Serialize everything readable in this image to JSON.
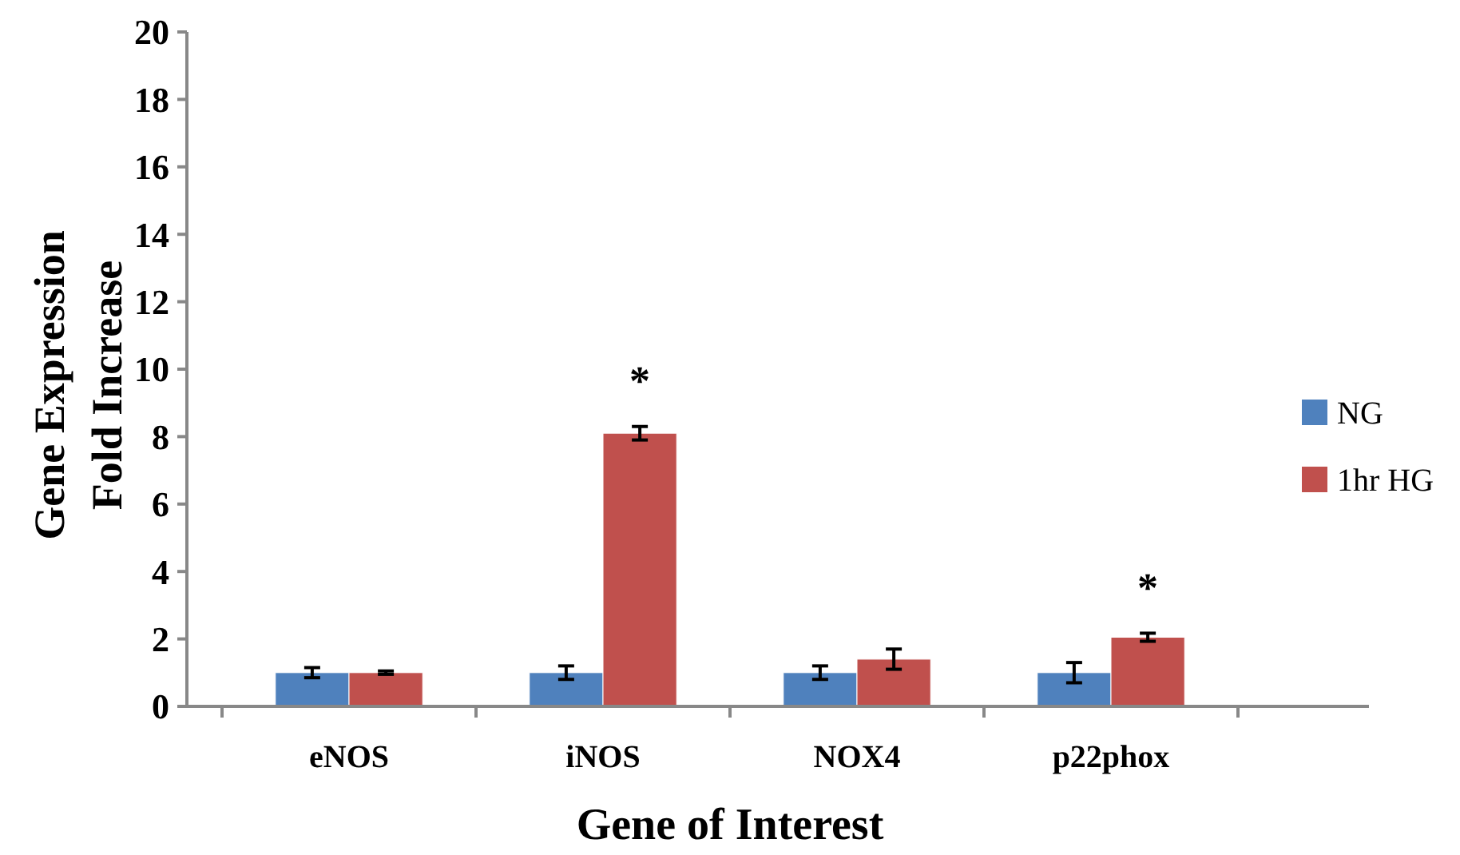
{
  "chart_data": {
    "type": "bar",
    "xlabel": "Gene of Interest",
    "ylabel": "Gene Expression Fold Increase",
    "categories": [
      "eNOS",
      "iNOS",
      "NOX4",
      "p22phox"
    ],
    "series": [
      {
        "name": "NG",
        "color": "#4f81bd",
        "values": [
          1,
          1,
          1,
          1
        ],
        "errors": [
          0.15,
          0.2,
          0.2,
          0.3
        ]
      },
      {
        "name": "1hr HG",
        "color": "#c0504d",
        "values": [
          1,
          8.1,
          1.4,
          2.05
        ],
        "errors": [
          0.05,
          0.2,
          0.3,
          0.12
        ]
      }
    ],
    "ylim": [
      0,
      20
    ],
    "yticks": [
      0,
      2,
      4,
      6,
      8,
      10,
      12,
      14,
      16,
      18,
      20
    ],
    "grid": false,
    "legend": "right",
    "annotations": [
      "*",
      "*"
    ]
  }
}
